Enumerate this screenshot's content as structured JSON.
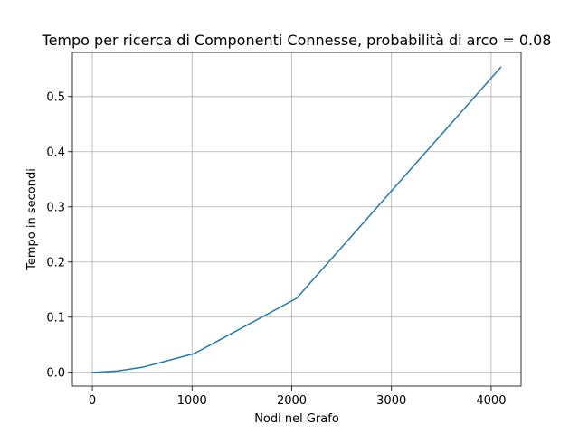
{
  "chart_data": {
    "type": "line",
    "title": "Tempo per ricerca di Componenti Connesse, probabilità di arco = 0.08",
    "xlabel": "Nodi nel Grafo",
    "ylabel": "Tempo in secondi",
    "xlim": [
      -200,
      4300
    ],
    "ylim": [
      -0.025,
      0.58
    ],
    "xticks": [
      0,
      1000,
      2000,
      3000,
      4000
    ],
    "yticks": [
      0.0,
      0.1,
      0.2,
      0.3,
      0.4,
      0.5
    ],
    "xtick_labels": [
      "0",
      "1000",
      "2000",
      "3000",
      "4000"
    ],
    "ytick_labels": [
      "0.0",
      "0.1",
      "0.2",
      "0.3",
      "0.4",
      "0.5"
    ],
    "grid": true,
    "series": [
      {
        "color": "#1f77b4",
        "x": [
          1,
          2,
          4,
          8,
          16,
          32,
          64,
          128,
          256,
          512,
          1024,
          2048,
          4096
        ],
        "y": [
          0.0,
          0.0,
          0.0,
          0.0,
          0.0,
          0.0,
          0.0005,
          0.001,
          0.0025,
          0.0095,
          0.034,
          0.134,
          0.553
        ]
      }
    ]
  }
}
